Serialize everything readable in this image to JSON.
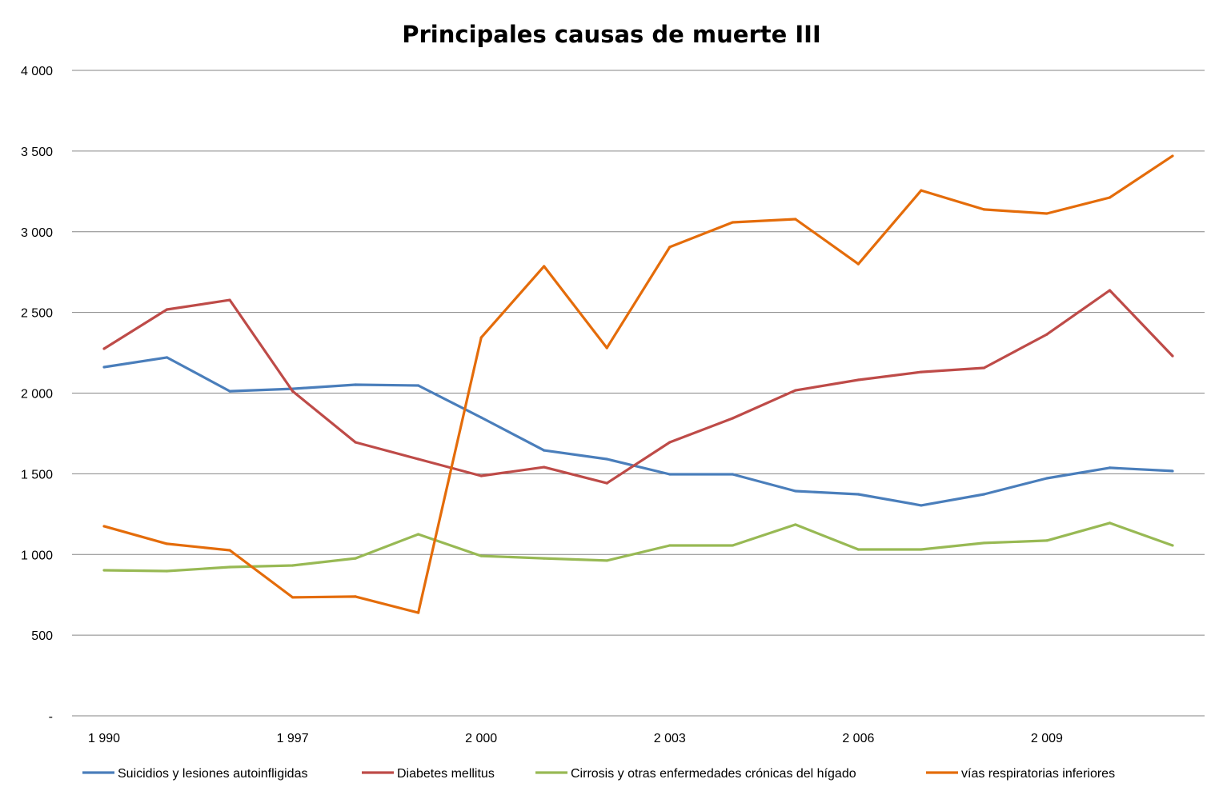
{
  "chart_data": {
    "type": "line",
    "title": "Principales causas de muerte III",
    "xlabel": "",
    "ylabel": "",
    "ylim": [
      0,
      4000
    ],
    "yticks": [
      0,
      500,
      1000,
      1500,
      2000,
      2500,
      3000,
      3500,
      4000
    ],
    "ytick_labels": [
      "-",
      "500",
      "1 000",
      "1 500",
      "2 000",
      "2 500",
      "3 000",
      "3 500",
      "4 000"
    ],
    "grid": true,
    "legend": "bottom",
    "categories": [
      "1 990",
      "",
      "",
      "1 997",
      "",
      "",
      "2 000",
      "",
      "",
      "2 003",
      "",
      "",
      "2 006",
      "",
      "",
      "2 009",
      "",
      ""
    ],
    "series": [
      {
        "name": "Suicidios y lesiones autoinfligidas",
        "color": "#4A7EBB",
        "values": [
          2161,
          2221,
          2012,
          2027,
          2052,
          2047,
          1849,
          1645,
          1591,
          1497,
          1497,
          1393,
          1373,
          1304,
          1373,
          1472,
          1537,
          1517
        ]
      },
      {
        "name": "Diabetes mellitus",
        "color": "#BE4B48",
        "values": [
          2275,
          2518,
          2577,
          2012,
          1695,
          1591,
          1487,
          1541,
          1442,
          1695,
          1844,
          2017,
          2082,
          2131,
          2156,
          2364,
          2637,
          2230
        ]
      },
      {
        "name": "Cirrosis y otras enfermedades crónicas del hígado",
        "color": "#98B954",
        "values": [
          902,
          897,
          922,
          932,
          976,
          1125,
          991,
          976,
          962,
          1056,
          1056,
          1185,
          1031,
          1031,
          1071,
          1086,
          1195,
          1056
        ]
      },
      {
        "name": "vías respiratorias inferiores",
        "color": "#E46C0A",
        "values": [
          1175,
          1066,
          1026,
          734,
          739,
          639,
          2344,
          2786,
          2280,
          2905,
          3058,
          3078,
          2800,
          3256,
          3138,
          3113,
          3212,
          3470
        ]
      }
    ]
  }
}
